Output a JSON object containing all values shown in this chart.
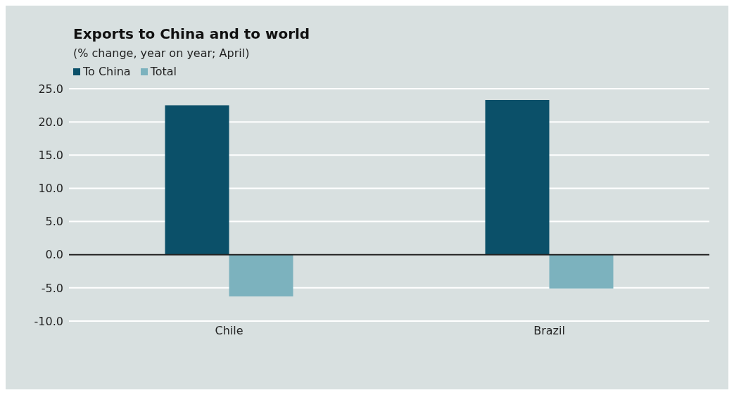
{
  "chart_data": {
    "type": "bar",
    "title": "Exports to China and to world",
    "subtitle": "(% change, year on year; April)",
    "categories": [
      "Chile",
      "Brazil"
    ],
    "series": [
      {
        "name": "To China",
        "color": "#0b5069",
        "values": [
          22.5,
          23.3
        ]
      },
      {
        "name": "Total",
        "color": "#7cb2be",
        "values": [
          -6.3,
          -5.1
        ]
      }
    ],
    "ylim": [
      -10,
      25
    ],
    "yticks": [
      {
        "value": -10,
        "label": "-10.0"
      },
      {
        "value": -5,
        "label": "-5.0"
      },
      {
        "value": 0,
        "label": "0.0"
      },
      {
        "value": 5,
        "label": "5.0"
      },
      {
        "value": 10,
        "label": "10.0"
      },
      {
        "value": 15,
        "label": "15.0"
      },
      {
        "value": 20,
        "label": "20.0"
      },
      {
        "value": 25,
        "label": "25.0"
      }
    ],
    "grid": "y",
    "legend": "top left"
  }
}
